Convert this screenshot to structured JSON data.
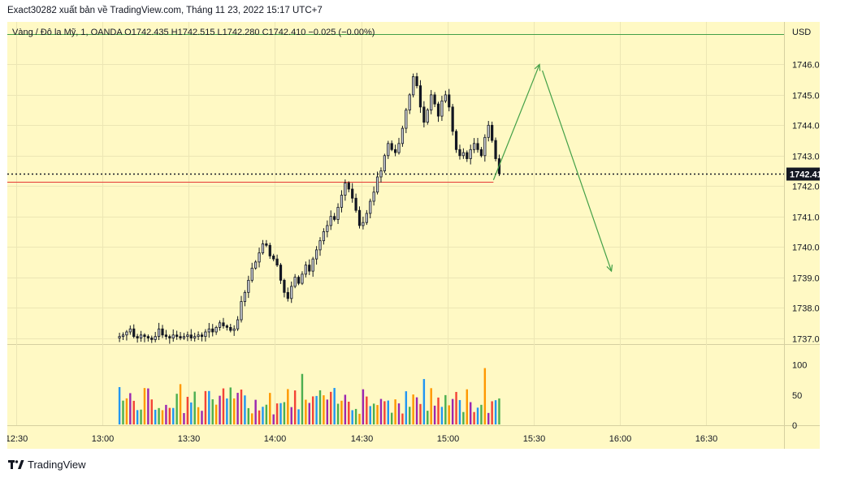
{
  "header_text": "Exact30282 xuất bản về TradingView.com, Tháng 11 23, 2022 15:17 UTC+7",
  "legend_text": "Vàng / Đô la Mỹ, 1, OANDA  O1742.435  H1742.515  L1742.280  C1742.410  −0.025 (−0.00%)",
  "footer_text": "TradingView",
  "colors": {
    "pane_bg": "#fff9c4",
    "up_body": "#d1d4dc",
    "down_body": "#131722",
    "wick": "#131722",
    "red_level": "#e53935",
    "green_level": "#43a047",
    "arrow": "#43a047",
    "price_badge_bg": "#131722",
    "volume_palette": [
      "#2196f3",
      "#4caf50",
      "#ff9800",
      "#9c27b0",
      "#f44336"
    ]
  },
  "chart_data": {
    "type": "candlestick",
    "price_axis": {
      "currency": "USD",
      "ticks": [
        "1746.000",
        "1745.000",
        "1744.000",
        "1743.000",
        "1742.000",
        "1741.000",
        "1740.000",
        "1739.000",
        "1738.000",
        "1737.000"
      ],
      "ylim": [
        1736.8,
        1747.4
      ]
    },
    "volume_axis": {
      "ticks": [
        "100",
        "50",
        "0"
      ],
      "ylim": [
        0,
        125
      ]
    },
    "time_axis": {
      "labels": [
        "12:30",
        "13:00",
        "13:30",
        "14:00",
        "14:30",
        "15:00",
        "15:30",
        "16:00",
        "16:30"
      ],
      "label_minutes": [
        0,
        30,
        60,
        90,
        120,
        150,
        180,
        210,
        240
      ],
      "xlim_minutes": [
        -3,
        267
      ]
    },
    "current_price": {
      "label": "1742.410",
      "value": 1742.41
    },
    "levels": [
      {
        "kind": "red",
        "value": 1742.15,
        "from_minute": -3,
        "to_minute": 166
      },
      {
        "kind": "green",
        "value": 1747.0,
        "from_minute": -3,
        "to_minute": 267
      }
    ],
    "arrows": [
      {
        "from": [
          166,
          1742.2
        ],
        "to": [
          182,
          1746.0
        ]
      },
      {
        "from": [
          183,
          1745.8
        ],
        "to": [
          207,
          1739.2
        ]
      }
    ],
    "candle_minutes_range": [
      36,
      168
    ],
    "candle_closes": [
      1737.05,
      1737.1,
      1737.2,
      1737.3,
      1737.05,
      1737.0,
      1737.1,
      1737.05,
      1737.0,
      1736.95,
      1737.05,
      1737.3,
      1737.1,
      1737.05,
      1737.0,
      1737.1,
      1737.05,
      1737.0,
      1737.05,
      1737.1,
      1737.0,
      1737.05,
      1737.1,
      1737.05,
      1737.2,
      1737.3,
      1737.2,
      1737.35,
      1737.5,
      1737.4,
      1737.35,
      1737.25,
      1737.3,
      1737.6,
      1738.2,
      1738.5,
      1738.9,
      1739.3,
      1739.5,
      1739.8,
      1740.1,
      1740.05,
      1739.7,
      1739.6,
      1739.4,
      1738.9,
      1738.5,
      1738.3,
      1738.7,
      1739.0,
      1738.8,
      1739.1,
      1739.4,
      1739.2,
      1739.6,
      1739.9,
      1740.2,
      1740.5,
      1740.7,
      1741.0,
      1740.9,
      1741.3,
      1741.7,
      1742.1,
      1741.9,
      1741.6,
      1741.2,
      1740.7,
      1740.8,
      1741.1,
      1741.5,
      1741.8,
      1742.3,
      1742.5,
      1743.0,
      1743.4,
      1743.2,
      1743.1,
      1743.4,
      1743.9,
      1744.5,
      1745.0,
      1745.6,
      1745.3,
      1744.6,
      1744.1,
      1744.5,
      1745.0,
      1744.7,
      1744.3,
      1744.8,
      1745.0,
      1744.6,
      1743.8,
      1743.2,
      1743.0,
      1743.1,
      1742.9,
      1743.2,
      1743.4,
      1743.2,
      1743.0,
      1743.6,
      1744.0,
      1743.5,
      1742.9,
      1742.41
    ]
  }
}
